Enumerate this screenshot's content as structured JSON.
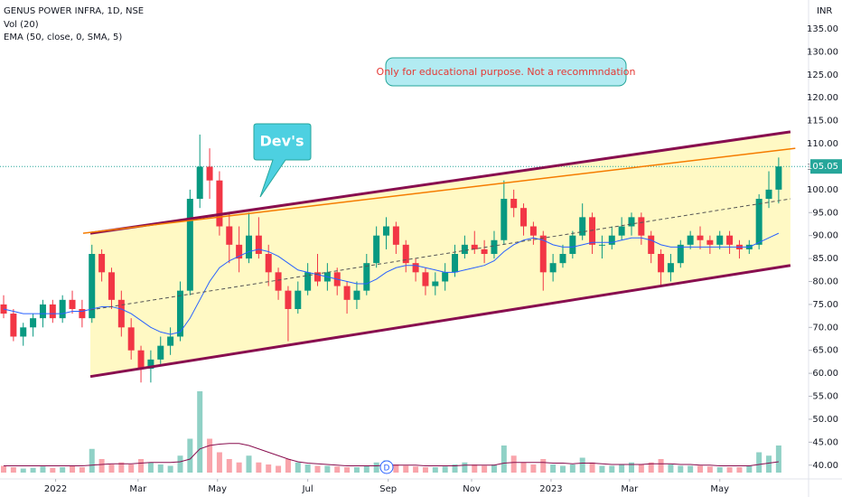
{
  "chart_data": {
    "type": "candlestick",
    "title": "GENUS POWER INFRA, 1D, NSE",
    "indicators": [
      "Vol (20)",
      "EMA (50, close, 0, SMA, 5)"
    ],
    "currency": "INR",
    "categories": [
      null,
      null,
      null,
      null,
      null,
      null,
      null,
      null,
      null,
      null,
      null,
      null,
      null,
      null,
      null,
      null,
      null,
      null,
      null,
      null,
      null,
      null,
      null,
      null,
      null,
      null,
      null,
      null,
      null,
      null,
      null,
      null,
      null,
      null,
      null,
      null,
      null,
      null,
      null,
      null,
      null,
      null,
      null,
      null,
      null,
      null,
      null,
      null,
      null,
      null,
      null,
      null,
      null,
      null,
      null,
      null,
      null,
      null,
      null,
      null,
      null,
      null,
      null,
      null,
      null,
      null,
      null,
      null,
      null,
      null,
      null,
      null,
      null,
      null,
      null,
      null,
      null,
      null,
      null,
      null
    ],
    "ohlc": {
      "open": [
        75,
        73,
        68,
        70,
        72,
        75,
        72,
        76,
        74,
        72,
        86,
        82,
        76,
        70,
        65,
        61,
        63,
        66,
        68,
        78,
        98,
        105,
        102,
        92,
        88,
        85,
        90,
        86,
        82,
        78,
        74,
        78,
        82,
        80,
        82,
        79,
        76,
        78,
        84,
        90,
        92,
        88,
        84,
        82,
        79,
        80,
        82,
        86,
        88,
        87,
        86,
        89,
        98,
        96,
        92,
        90,
        82,
        84,
        86,
        90,
        94,
        88,
        88,
        90,
        92,
        94,
        90,
        86,
        82,
        84,
        88,
        90,
        89,
        88,
        90,
        88,
        87,
        88,
        98,
        100
      ],
      "high": [
        77,
        74,
        71,
        73,
        76,
        76,
        77,
        78,
        76,
        88,
        87,
        83,
        78,
        72,
        66,
        65,
        68,
        70,
        80,
        100,
        112,
        109,
        104,
        95,
        92,
        95,
        94,
        88,
        83,
        79,
        80,
        84,
        86,
        84,
        83,
        80,
        80,
        86,
        92,
        94,
        93,
        89,
        85,
        83,
        82,
        84,
        88,
        90,
        91,
        89,
        91,
        102,
        100,
        97,
        93,
        91,
        86,
        88,
        91,
        97,
        95,
        90,
        92,
        94,
        95,
        95,
        91,
        87,
        86,
        89,
        91,
        92,
        90,
        91,
        91,
        89,
        89,
        99,
        104,
        107
      ],
      "low": [
        72,
        67,
        66,
        68,
        70,
        71,
        71,
        73,
        70,
        71,
        80,
        74,
        68,
        63,
        58,
        58,
        62,
        64,
        67,
        77,
        96,
        98,
        90,
        84,
        82,
        84,
        85,
        79,
        76,
        67,
        73,
        77,
        79,
        78,
        77,
        73,
        74,
        77,
        83,
        87,
        86,
        82,
        80,
        77,
        77,
        78,
        81,
        85,
        86,
        84,
        85,
        88,
        94,
        90,
        88,
        78,
        80,
        83,
        85,
        89,
        86,
        85,
        87,
        89,
        90,
        88,
        84,
        79,
        80,
        83,
        87,
        87,
        86,
        87,
        86,
        85,
        86,
        87,
        96,
        97
      ],
      "close": [
        73,
        68,
        70,
        72,
        75,
        72,
        76,
        74,
        72,
        86,
        82,
        76,
        70,
        65,
        61,
        63,
        66,
        68,
        78,
        98,
        105,
        102,
        92,
        88,
        85,
        90,
        86,
        82,
        78,
        74,
        78,
        82,
        80,
        82,
        79,
        76,
        78,
        84,
        90,
        92,
        88,
        84,
        82,
        79,
        80,
        82,
        86,
        88,
        87,
        86,
        89,
        98,
        96,
        92,
        90,
        82,
        84,
        86,
        90,
        94,
        88,
        88,
        90,
        92,
        94,
        90,
        86,
        82,
        84,
        88,
        90,
        89,
        88,
        90,
        88,
        87,
        88,
        98,
        100,
        105.05
      ]
    },
    "up_color": "#089981",
    "down_color": "#f23645",
    "ema": {
      "color": "#2962ff",
      "values": [
        74,
        73.5,
        73,
        73,
        73,
        73,
        73,
        73.5,
        73.5,
        74,
        74.5,
        74.5,
        74,
        73,
        71.5,
        70,
        69,
        68.5,
        69,
        72,
        76,
        80,
        83,
        84.5,
        85.5,
        86.5,
        87,
        86.5,
        85.5,
        84,
        82.5,
        82,
        81.5,
        81,
        80.5,
        80,
        79.5,
        79.5,
        80.5,
        82,
        83,
        83.5,
        83.5,
        83,
        82.5,
        82,
        82,
        82.5,
        83,
        83.5,
        84.5,
        86.5,
        88,
        89,
        89.5,
        89,
        88,
        87.5,
        87.5,
        88,
        88.5,
        88.5,
        88.5,
        89,
        89.5,
        89.5,
        89,
        88,
        87.5,
        87.5,
        87.5,
        87.5,
        87.5,
        87.5,
        87.5,
        87.5,
        87.5,
        88.5,
        89.5,
        90.5
      ]
    },
    "volume": {
      "values": [
        1,
        0.8,
        0.6,
        0.7,
        0.9,
        0.7,
        0.8,
        1,
        0.8,
        3.5,
        2,
        1.2,
        1.5,
        1.2,
        2,
        1.5,
        1.2,
        1,
        2.5,
        5,
        12,
        5,
        3,
        2,
        1.5,
        2.5,
        1.5,
        1.2,
        1,
        2,
        1.5,
        1.2,
        1,
        1,
        0.9,
        0.8,
        0.8,
        1,
        1.5,
        1.8,
        1.2,
        1,
        0.9,
        0.8,
        0.8,
        0.9,
        1.2,
        1.5,
        1.2,
        1,
        1.2,
        4,
        2.5,
        1.5,
        1.2,
        2,
        1.2,
        1,
        1.2,
        2.2,
        1.5,
        1,
        1,
        1.2,
        1.5,
        1.2,
        1.5,
        2,
        1.2,
        1,
        1,
        1,
        0.9,
        0.8,
        0.8,
        0.8,
        1,
        3,
        2.5,
        4
      ],
      "ma": [
        1,
        1,
        1,
        1,
        1,
        1,
        1,
        1,
        1,
        1.1,
        1.2,
        1.3,
        1.3,
        1.3,
        1.4,
        1.5,
        1.5,
        1.5,
        1.6,
        2,
        3.5,
        4,
        4.2,
        4.3,
        4.3,
        4,
        3.5,
        3,
        2.5,
        2,
        1.6,
        1.4,
        1.3,
        1.2,
        1.1,
        1,
        1,
        1,
        1,
        1.1,
        1.1,
        1.1,
        1.1,
        1,
        1,
        1,
        1,
        1.1,
        1.1,
        1.1,
        1.1,
        1.4,
        1.5,
        1.5,
        1.5,
        1.5,
        1.4,
        1.4,
        1.3,
        1.4,
        1.4,
        1.3,
        1.2,
        1.2,
        1.2,
        1.2,
        1.3,
        1.3,
        1.3,
        1.2,
        1.2,
        1.1,
        1.1,
        1,
        1,
        1,
        1,
        1.2,
        1.4,
        1.6
      ],
      "ma_color": "#880e4f"
    },
    "channel": {
      "upper_x": [
        8.84,
        80.2
      ],
      "upper_y": [
        90.5,
        112.6
      ],
      "lower_x": [
        8.84,
        80.2
      ],
      "lower_y": [
        59.3,
        83.5
      ],
      "mid_x": [
        8.84,
        80.2
      ],
      "mid_y": [
        73.8,
        98.0
      ],
      "color": "#880e4f",
      "fill": "#fff9c4",
      "mid_color": "#555555"
    },
    "trend_line": {
      "x": [
        8.1,
        80.7
      ],
      "y": [
        90.5,
        109.0
      ],
      "color": "#f57c00"
    },
    "xlim": [
      -0.37,
      82.05
    ],
    "ylim": [
      37,
      141.3
    ],
    "yticks": [
      {
        "value": 40,
        "label": "40.00"
      },
      {
        "value": 45,
        "label": "45.00"
      },
      {
        "value": 50,
        "label": "50.00"
      },
      {
        "value": 55,
        "label": "55.00"
      },
      {
        "value": 60,
        "label": "60.00"
      },
      {
        "value": 65,
        "label": "65.00"
      },
      {
        "value": 70,
        "label": "70.00"
      },
      {
        "value": 75,
        "label": "75.00"
      },
      {
        "value": 80,
        "label": "80.00"
      },
      {
        "value": 85,
        "label": "85.00"
      },
      {
        "value": 90,
        "label": "90.00"
      },
      {
        "value": 95,
        "label": "95.00"
      },
      {
        "value": 100,
        "label": "100.00"
      },
      {
        "value": 105,
        "label": "105.00"
      },
      {
        "value": 110,
        "label": "110.00"
      },
      {
        "value": 115,
        "label": "115.00"
      },
      {
        "value": 120,
        "label": "120.00"
      },
      {
        "value": 125,
        "label": "125.00"
      },
      {
        "value": 130,
        "label": "130.00"
      },
      {
        "value": 135,
        "label": "135.00"
      }
    ],
    "xticks": [
      {
        "value": 5.3,
        "label": "2022"
      },
      {
        "value": 13.7,
        "label": "Mar"
      },
      {
        "value": 21.8,
        "label": "May"
      },
      {
        "value": 31.0,
        "label": "Jul"
      },
      {
        "value": 39.2,
        "label": "Sep"
      },
      {
        "value": 47.7,
        "label": "Nov"
      },
      {
        "value": 55.8,
        "label": "2023"
      },
      {
        "value": 63.8,
        "label": "Mar"
      },
      {
        "value": 73.0,
        "label": "May"
      }
    ],
    "last_price_color": "#26a69a",
    "annotations": {
      "note": "Only for educational purpose. Not a recommndation",
      "callout": "Dev's",
      "event": "D"
    }
  }
}
